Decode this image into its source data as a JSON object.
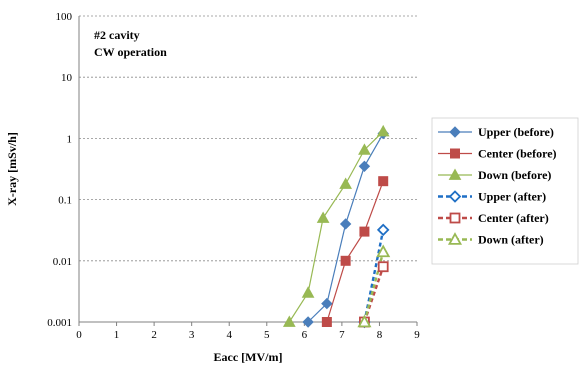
{
  "chart_data": {
    "type": "line",
    "annotation": [
      "#2 cavity",
      "CW operation"
    ],
    "xlabel": "Eacc  [MV/m]",
    "ylabel": "X-ray [mSv/h]",
    "xlim": [
      0,
      9
    ],
    "ylim": [
      0.001,
      100
    ],
    "y_scale": "log",
    "x_ticks": [
      "0",
      "1",
      "2",
      "3",
      "4",
      "5",
      "6",
      "7",
      "8",
      "9"
    ],
    "y_ticks": [
      "0.001",
      "0.01",
      "0.1",
      "1",
      "10",
      "100"
    ],
    "grid": "horizontal dotted",
    "legend_position": "right",
    "series": [
      {
        "name": "Upper (before)",
        "color": "#4a7ebb",
        "marker": "diamond",
        "line": "solid",
        "fill": true,
        "points": [
          [
            6.1,
            0.001
          ],
          [
            6.6,
            0.002
          ],
          [
            7.1,
            0.04
          ],
          [
            7.6,
            0.35
          ],
          [
            8.1,
            1.2
          ]
        ]
      },
      {
        "name": "Center (before)",
        "color": "#be4b48",
        "marker": "square",
        "line": "solid",
        "fill": true,
        "points": [
          [
            6.6,
            0.001
          ],
          [
            7.1,
            0.01
          ],
          [
            7.6,
            0.03
          ],
          [
            8.1,
            0.2
          ]
        ]
      },
      {
        "name": "Down (before)",
        "color": "#98b954",
        "marker": "triangle",
        "line": "solid",
        "fill": true,
        "points": [
          [
            5.6,
            0.001
          ],
          [
            6.1,
            0.003
          ],
          [
            6.5,
            0.05
          ],
          [
            7.1,
            0.18
          ],
          [
            7.6,
            0.65
          ],
          [
            8.1,
            1.3
          ]
        ]
      },
      {
        "name": "Upper (after)",
        "color": "#1f6fc5",
        "marker": "diamond",
        "line": "dashed",
        "fill": false,
        "points": [
          [
            7.6,
            0.001
          ],
          [
            8.1,
            0.032
          ]
        ]
      },
      {
        "name": "Center (after)",
        "color": "#be4b48",
        "marker": "square",
        "line": "dashed",
        "fill": false,
        "points": [
          [
            7.6,
            0.001
          ],
          [
            8.1,
            0.008
          ]
        ]
      },
      {
        "name": "Down (after)",
        "color": "#98b954",
        "marker": "triangle",
        "line": "dashed",
        "fill": false,
        "points": [
          [
            7.6,
            0.001
          ],
          [
            8.1,
            0.014
          ]
        ]
      }
    ]
  }
}
